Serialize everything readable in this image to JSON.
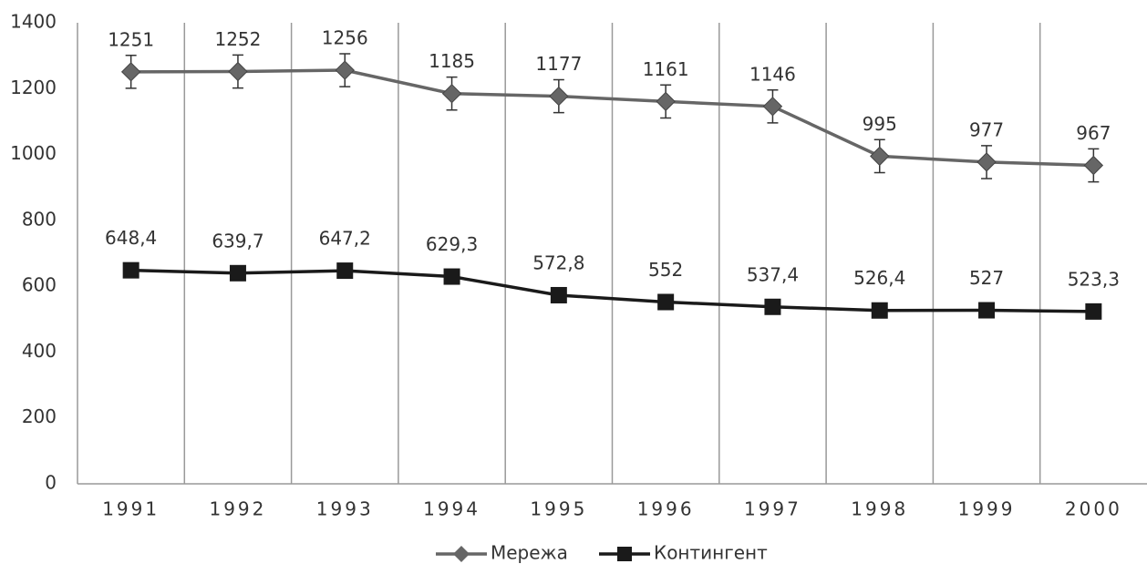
{
  "chart_data": {
    "type": "line",
    "categories": [
      "1991",
      "1992",
      "1993",
      "1994",
      "1995",
      "1996",
      "1997",
      "1998",
      "1999",
      "2000"
    ],
    "series": [
      {
        "name": "Мережа",
        "color": "#666666",
        "marker": "diamond",
        "values": [
          1251,
          1252,
          1256,
          1185,
          1177,
          1161,
          1146,
          995,
          977,
          967
        ],
        "errors": [
          50,
          50,
          50,
          50,
          50,
          50,
          50,
          50,
          50,
          50
        ]
      },
      {
        "name": "Контингент",
        "color": "#1a1a1a",
        "marker": "square",
        "values": [
          648.4,
          639.7,
          647.2,
          629.3,
          572.8,
          552,
          537.4,
          526.4,
          527,
          523.3
        ],
        "value_labels": [
          "648,4",
          "639,7",
          "647,2",
          "629,3",
          "572,8",
          "552",
          "537,4",
          "526,4",
          "527",
          "523,3"
        ]
      }
    ],
    "ylim": [
      0,
      1400
    ],
    "yticks": [
      0,
      200,
      400,
      600,
      800,
      1000,
      1200,
      1400
    ],
    "grid": "vertical",
    "legend": "bottom"
  }
}
